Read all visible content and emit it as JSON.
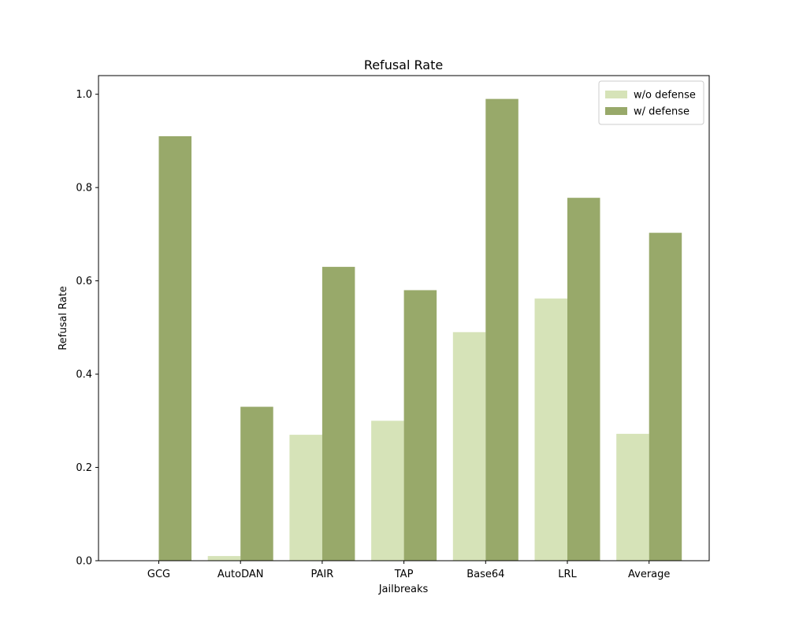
{
  "chart_data": {
    "type": "bar",
    "title": "Refusal Rate",
    "xlabel": "Jailbreaks",
    "ylabel": "Refusal Rate",
    "categories": [
      "GCG",
      "AutoDAN",
      "PAIR",
      "TAP",
      "Base64",
      "LRL",
      "Average"
    ],
    "series": [
      {
        "name": "w/o defense",
        "color": "#d6e3b8",
        "values": [
          0.0,
          0.01,
          0.27,
          0.3,
          0.49,
          0.562,
          0.272
        ]
      },
      {
        "name": "w/ defense",
        "color": "#98a96a",
        "values": [
          0.91,
          0.33,
          0.63,
          0.58,
          0.99,
          0.778,
          0.703
        ]
      }
    ],
    "ylim": [
      0,
      1.04
    ],
    "yticks": [
      0.0,
      0.2,
      0.4,
      0.6,
      0.8,
      1.0
    ],
    "ytick_labels": [
      "0.0",
      "0.2",
      "0.4",
      "0.6",
      "0.8",
      "1.0"
    ],
    "grid": false,
    "legend_position": "top-right"
  }
}
